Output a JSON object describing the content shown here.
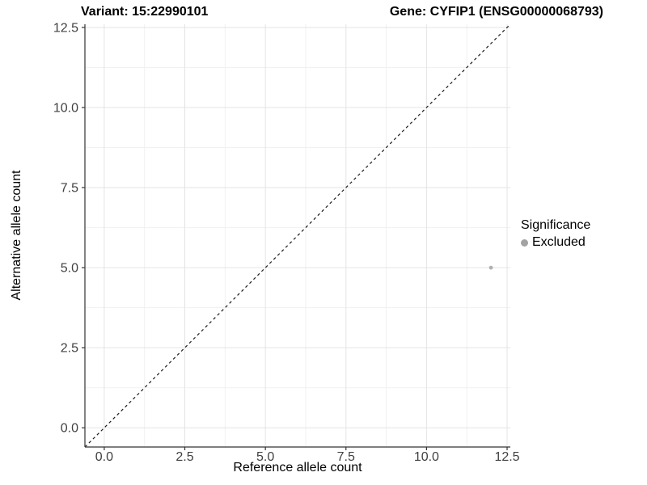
{
  "chart_data": {
    "type": "scatter",
    "title_left": "Variant: 15:22990101",
    "title_right": "Gene: CYFIP1 (ENSG00000068793)",
    "xlabel": "Reference allele count",
    "ylabel": "Alternative allele count",
    "xlim": [
      -0.6,
      12.6
    ],
    "ylim": [
      -0.6,
      12.6
    ],
    "x_ticks": {
      "values": [
        0,
        2.5,
        5,
        7.5,
        10,
        12.5
      ],
      "labels": [
        "0.0",
        "2.5",
        "5.0",
        "7.5",
        "10.0",
        "12.5"
      ]
    },
    "y_ticks": {
      "values": [
        0,
        2.5,
        5,
        7.5,
        10,
        12.5
      ],
      "labels": [
        "0.0",
        "2.5",
        "5.0",
        "7.5",
        "10.0",
        "12.5"
      ]
    },
    "minor_ticks": [
      1.25,
      3.75,
      6.25,
      8.75,
      11.25
    ],
    "grid": true,
    "reference_line": {
      "slope": 1,
      "intercept": 0,
      "style": "dashed",
      "color": "#1a1a1a"
    },
    "series": [
      {
        "name": "Excluded",
        "color": "#b0b0b0",
        "points": [
          {
            "x": 12,
            "y": 5
          }
        ]
      }
    ],
    "legend": {
      "title": "Significance",
      "position": "right",
      "items": [
        {
          "label": "Excluded",
          "color": "#a3a3a3"
        }
      ]
    },
    "colors": {
      "axis_line": "#333333",
      "tick_label": "#404040",
      "grid_major": "#e4e4e4",
      "grid_minor": "#f1f1f1",
      "background": "#ffffff"
    }
  }
}
